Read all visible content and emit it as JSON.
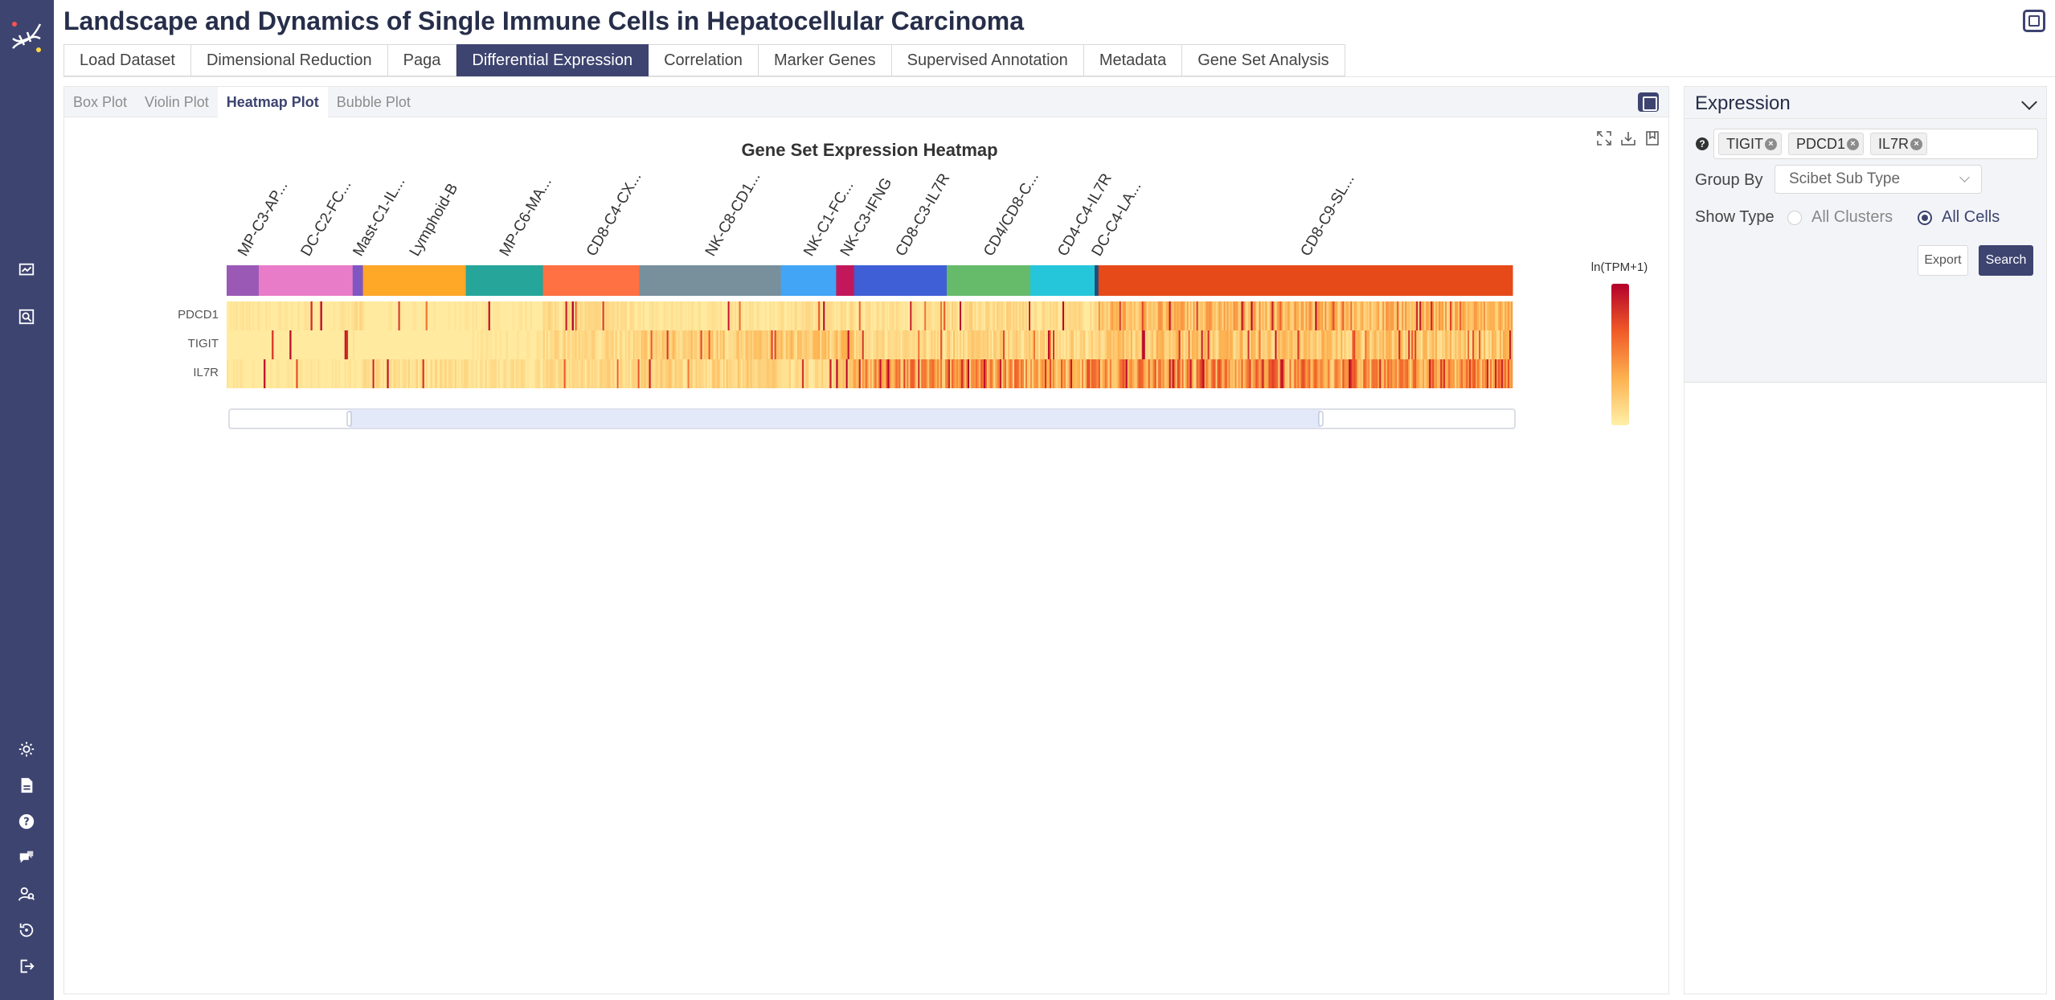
{
  "app": {
    "title": "Landscape and Dynamics of Single Immune Cells in Hepatocellular Carcinoma",
    "accent": "#3d4470"
  },
  "tabs": [
    "Load Dataset",
    "Dimensional Reduction",
    "Paga",
    "Differential Expression",
    "Correlation",
    "Marker Genes",
    "Supervised Annotation",
    "Metadata",
    "Gene Set Analysis"
  ],
  "active_tab": "Differential Expression",
  "subtabs": [
    "Box Plot",
    "Violin Plot",
    "Heatmap Plot",
    "Bubble Plot"
  ],
  "active_subtab": "Heatmap Plot",
  "rail_icons": [
    "app-logo-icon",
    "chart-board-icon",
    "image-search-icon",
    "brightness-icon",
    "document-icon",
    "help-icon",
    "feedback-icon",
    "user-search-icon",
    "history-icon",
    "logout-icon"
  ],
  "toolbar_icons": [
    "zoom-fit-icon",
    "download-icon",
    "bookmark-icon"
  ],
  "side": {
    "title": "Expression",
    "help": "?",
    "genes": [
      "TIGIT",
      "PDCD1",
      "IL7R"
    ],
    "group_by_label": "Group By",
    "group_by_value": "Scibet Sub Type",
    "show_type_label": "Show Type",
    "show_type_options": [
      "All Clusters",
      "All Cells"
    ],
    "show_type_selected": "All Cells",
    "export_label": "Export",
    "search_label": "Search"
  },
  "chart_data": {
    "type": "heatmap",
    "title": "Gene Set Expression Heatmap",
    "colorbar_label": "ln(TPM+1)",
    "color_scale": [
      "#fff0a8",
      "#fdb14f",
      "#f05a28",
      "#b3002a"
    ],
    "rows": [
      "PDCD1",
      "TIGIT",
      "IL7R"
    ],
    "groups": [
      {
        "label": "MP-C3-AP...",
        "share": 0.025,
        "color": "#9b59b6"
      },
      {
        "label": "DC-C2-FC...",
        "share": 0.073,
        "color": "#e97cc8"
      },
      {
        "label": "Mast-C1-IL...",
        "share": 0.008,
        "color": "#7e57c2"
      },
      {
        "label": "Lymphoid-B",
        "share": 0.08,
        "color": "#ffa726"
      },
      {
        "label": "MP-C6-MA...",
        "share": 0.06,
        "color": "#26a69a"
      },
      {
        "label": "CD8-C4-CX...",
        "share": 0.075,
        "color": "#ff7043"
      },
      {
        "label": "NK-C8-CD1...",
        "share": 0.11,
        "color": "#78909c"
      },
      {
        "label": "NK-C1-FC...",
        "share": 0.043,
        "color": "#42a5f5"
      },
      {
        "label": "NK-C3-IFNG",
        "share": 0.014,
        "color": "#c2185b"
      },
      {
        "label": "CD8-C3-IL7R",
        "share": 0.072,
        "color": "#3f5fd6"
      },
      {
        "label": "CD4/CD8-C...",
        "share": 0.065,
        "color": "#66bb6a"
      },
      {
        "label": "CD4-C4-IL7R",
        "share": 0.05,
        "color": "#26c6da"
      },
      {
        "label": "DC-C4-LA...",
        "share": 0.003,
        "color": "#1f4e79"
      },
      {
        "label": "CD8-C9-SL...",
        "share": 0.322,
        "color": "#e64a19"
      }
    ],
    "group_mean_expression": {
      "PDCD1": [
        0.05,
        0.05,
        0.1,
        0.04,
        0.05,
        0.1,
        0.06,
        0.08,
        0.1,
        0.08,
        0.12,
        0.1,
        0.1,
        0.28
      ],
      "TIGIT": [
        0.03,
        0.03,
        0.05,
        0.03,
        0.05,
        0.12,
        0.18,
        0.2,
        0.22,
        0.12,
        0.15,
        0.14,
        0.15,
        0.22
      ],
      "IL7R": [
        0.05,
        0.05,
        0.05,
        0.1,
        0.08,
        0.12,
        0.15,
        0.12,
        0.2,
        0.4,
        0.38,
        0.42,
        0.4,
        0.42
      ]
    },
    "legend_placement": "right"
  }
}
